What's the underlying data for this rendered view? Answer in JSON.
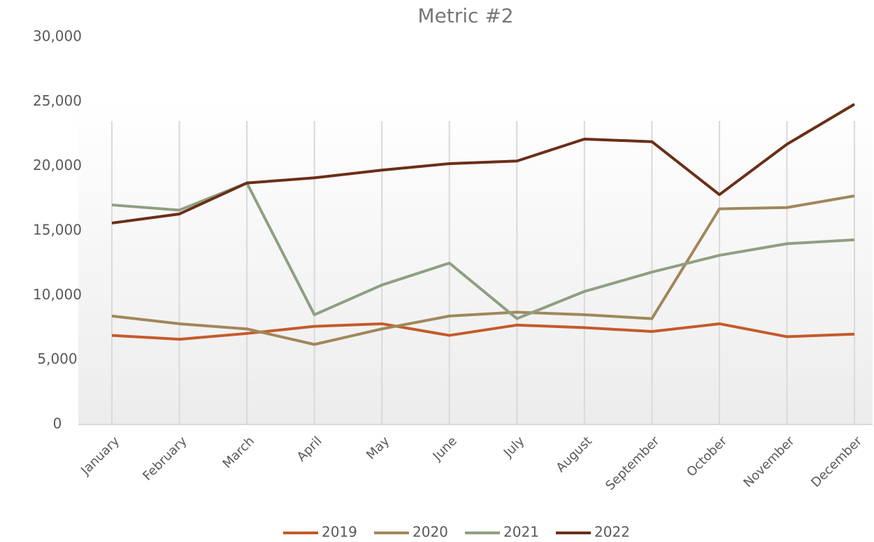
{
  "chart_data": {
    "type": "line",
    "title": "Metric #2",
    "categories": [
      "January",
      "February",
      "March",
      "April",
      "May",
      "June",
      "July",
      "August",
      "September",
      "October",
      "November",
      "December"
    ],
    "series": [
      {
        "name": "2019",
        "color": "#c55a2b",
        "values": [
          6900,
          6600,
          7050,
          7600,
          7800,
          6900,
          7700,
          7500,
          7200,
          7800,
          6800,
          7000
        ]
      },
      {
        "name": "2020",
        "color": "#a0875a",
        "values": [
          8400,
          7800,
          7400,
          6200,
          7400,
          8400,
          8700,
          8500,
          8200,
          16700,
          16800,
          17700
        ]
      },
      {
        "name": "2021",
        "color": "#8f9f82",
        "values": [
          17000,
          16600,
          18700,
          8500,
          10800,
          12500,
          8200,
          10300,
          11800,
          13100,
          14000,
          14300
        ]
      },
      {
        "name": "2022",
        "color": "#6b2e18",
        "values": [
          15600,
          16300,
          18700,
          19100,
          19700,
          20200,
          20400,
          22100,
          21900,
          17800,
          21700,
          24800
        ]
      }
    ],
    "ylim": [
      0,
      30000
    ],
    "yticks": [
      0,
      {
        "value": 5000,
        "label": "5,000"
      },
      {
        "value": 10000,
        "label": "10,000"
      },
      {
        "value": 15000,
        "label": "15,000"
      },
      {
        "value": 20000,
        "label": "20,000"
      },
      {
        "value": 25000,
        "label": "25,000"
      },
      {
        "value": 30000,
        "label": "30,000"
      }
    ],
    "grid": true,
    "legend": "bottom"
  }
}
